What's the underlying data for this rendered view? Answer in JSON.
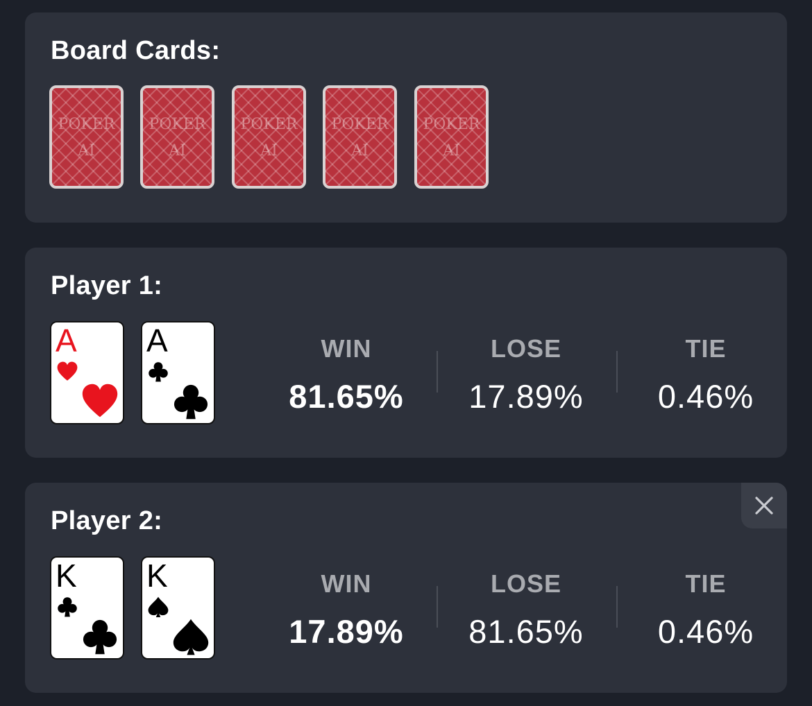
{
  "board": {
    "title": "Board Cards:",
    "cards": [
      {
        "back_line1": "POKER",
        "back_line2": "AI"
      },
      {
        "back_line1": "POKER",
        "back_line2": "AI"
      },
      {
        "back_line1": "POKER",
        "back_line2": "AI"
      },
      {
        "back_line1": "POKER",
        "back_line2": "AI"
      },
      {
        "back_line1": "POKER",
        "back_line2": "AI"
      }
    ]
  },
  "players": [
    {
      "title": "Player 1:",
      "cards": [
        {
          "rank": "A",
          "suit": "hearts",
          "color": "#e8141e"
        },
        {
          "rank": "A",
          "suit": "clubs",
          "color": "#000000"
        }
      ],
      "stats": {
        "win_label": "WIN",
        "win_value": "81.65%",
        "lose_label": "LOSE",
        "lose_value": "17.89%",
        "tie_label": "TIE",
        "tie_value": "0.46%"
      }
    },
    {
      "title": "Player 2:",
      "cards": [
        {
          "rank": "K",
          "suit": "clubs",
          "color": "#000000"
        },
        {
          "rank": "K",
          "suit": "spades",
          "color": "#000000"
        }
      ],
      "stats": {
        "win_label": "WIN",
        "win_value": "17.89%",
        "lose_label": "LOSE",
        "lose_value": "81.65%",
        "tie_label": "TIE",
        "tie_value": "0.46%"
      },
      "close_icon": "close-icon"
    }
  ],
  "colors": {
    "background": "#1c2029",
    "panel": "#2d313b",
    "card_back": "#b8323d",
    "red_suit": "#e8141e",
    "label_gray": "#a9abb0"
  }
}
